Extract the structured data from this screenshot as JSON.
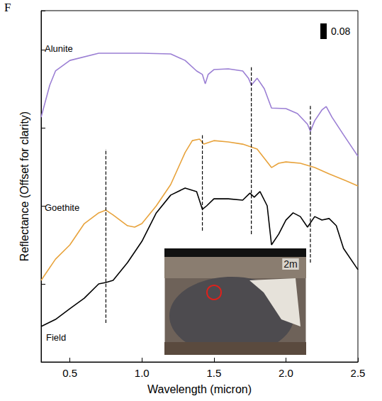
{
  "chart_data": {
    "type": "line",
    "panel_label": "F",
    "x_label": "Wavelength (micron)",
    "y_label": "Reflectance (Offset for clarity)",
    "xlim": [
      0.3,
      2.5
    ],
    "xticks": [
      0.5,
      {
        "value": 1,
        "label": "1.0"
      },
      1.5,
      {
        "value": 2,
        "label": "2.0"
      },
      2.5
    ],
    "ylim": [
      0,
      1.8
    ],
    "yticks": [
      0,
      0.4,
      0.8,
      1.2,
      1.6
    ],
    "tick_labels": "x",
    "grid": false,
    "scale_bar": {
      "value": 0.08
    },
    "inset_label": "2m",
    "series": [
      {
        "name": "Alunite",
        "color": "#9b7fd4",
        "x": [
          0.3,
          0.36,
          0.4,
          0.5,
          0.7,
          1.0,
          1.2,
          1.3,
          1.38,
          1.42,
          1.44,
          1.46,
          1.5,
          1.6,
          1.7,
          1.74,
          1.76,
          1.8,
          1.85,
          1.9,
          2.0,
          2.08,
          2.15,
          2.17,
          2.2,
          2.25,
          2.28,
          2.32,
          2.4,
          2.5
        ],
        "values": [
          1.254,
          1.418,
          1.491,
          1.545,
          1.582,
          1.582,
          1.578,
          1.545,
          1.491,
          1.473,
          1.425,
          1.473,
          1.498,
          1.502,
          1.491,
          1.454,
          1.418,
          1.454,
          1.4,
          1.301,
          1.298,
          1.273,
          1.218,
          1.182,
          1.236,
          1.291,
          1.309,
          1.254,
          1.164,
          1.054
        ]
      },
      {
        "name": "Goethite",
        "color": "#e8a33c",
        "x": [
          0.3,
          0.4,
          0.5,
          0.6,
          0.7,
          0.75,
          0.8,
          0.9,
          0.95,
          1.0,
          1.1,
          1.2,
          1.3,
          1.35,
          1.4,
          1.43,
          1.5,
          1.6,
          1.7,
          1.8,
          1.85,
          1.9,
          1.95,
          2.0,
          2.1,
          2.2,
          2.3,
          2.4,
          2.5
        ],
        "values": [
          0.418,
          0.527,
          0.6,
          0.709,
          0.764,
          0.778,
          0.753,
          0.698,
          0.691,
          0.709,
          0.8,
          0.909,
          1.073,
          1.134,
          1.142,
          1.116,
          1.134,
          1.127,
          1.116,
          1.091,
          1.044,
          0.996,
          1.018,
          1.025,
          1.018,
          0.996,
          0.964,
          0.934,
          0.902
        ]
      },
      {
        "name": "Field",
        "color": "#000000",
        "x": [
          0.3,
          0.4,
          0.5,
          0.6,
          0.7,
          0.75,
          0.8,
          0.9,
          1.0,
          1.1,
          1.2,
          1.3,
          1.38,
          1.42,
          1.45,
          1.5,
          1.6,
          1.7,
          1.75,
          1.78,
          1.82,
          1.87,
          1.9,
          1.95,
          2.0,
          2.05,
          2.1,
          2.15,
          2.2,
          2.25,
          2.3,
          2.35,
          2.4,
          2.5
        ],
        "values": [
          0.182,
          0.218,
          0.273,
          0.327,
          0.4,
          0.407,
          0.418,
          0.509,
          0.618,
          0.764,
          0.855,
          0.891,
          0.873,
          0.782,
          0.8,
          0.836,
          0.836,
          0.829,
          0.865,
          0.844,
          0.873,
          0.8,
          0.6,
          0.655,
          0.727,
          0.764,
          0.745,
          0.691,
          0.745,
          0.727,
          0.735,
          0.698,
          0.582,
          0.473
        ]
      }
    ],
    "reference_lines": [
      {
        "x": 0.75,
        "y": [
          0.2,
          1.091
        ],
        "line_style": "dashed"
      },
      {
        "x": 1.42,
        "y": [
          0.673,
          1.164
        ],
        "line_style": "dashed"
      },
      {
        "x": 1.76,
        "y": [
          0.655,
          1.516
        ],
        "line_style": "dashed"
      },
      {
        "x": 2.17,
        "y": [
          0.509,
          1.316
        ],
        "line_style": "dashed"
      }
    ]
  }
}
